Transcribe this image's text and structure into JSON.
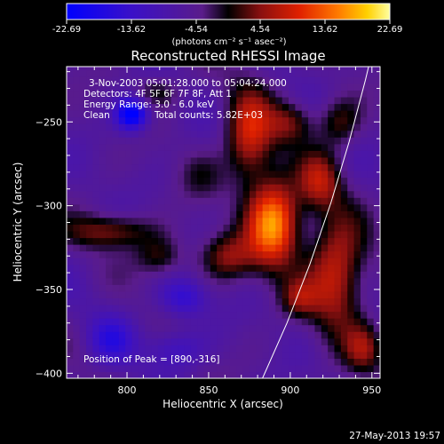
{
  "chart_data": {
    "type": "heatmap",
    "title": "Reconstructed RHESSI Image",
    "xlabel": "Heliocentric X (arcsec)",
    "ylabel": "Heliocentric Y (arcsec)",
    "xlim": [
      763,
      955
    ],
    "ylim": [
      -403,
      -217
    ],
    "x_ticks": [
      800,
      850,
      900,
      950
    ],
    "y_ticks": [
      -250,
      -300,
      -350,
      -400
    ],
    "colorbar": {
      "ticks": [
        "-22.69",
        "-13.62",
        "-4.54",
        "4.54",
        "13.62",
        "22.69"
      ],
      "range": [
        -22.69,
        22.69
      ],
      "unit_label": "(photons cm⁻² s⁻¹ asec⁻²)"
    },
    "annotations": [
      "3-Nov-2003 05:01:28.000 to 05:04:24.000",
      "Detectors: 4F 5F 6F 7F 8F, Att 1",
      "Energy Range: 3.0 - 6.0 keV",
      "Clean",
      "Total counts: 5.82E+03"
    ],
    "peak_label": "Position of Peak = [890,-316]",
    "peak": [
      890,
      -316
    ],
    "sources": [
      {
        "x": 890,
        "y": -310,
        "amp": 22.69,
        "sx": 11,
        "sy": 18
      },
      {
        "x": 875,
        "y": -258,
        "amp": 14.5,
        "sx": 10,
        "sy": 20
      },
      {
        "x": 862,
        "y": -330,
        "amp": 10.0,
        "sx": 12,
        "sy": 10
      },
      {
        "x": 928,
        "y": -340,
        "amp": 15.0,
        "sx": 12,
        "sy": 24
      },
      {
        "x": 918,
        "y": -285,
        "amp": 11.0,
        "sx": 9,
        "sy": 12
      },
      {
        "x": 900,
        "y": -250,
        "amp": 9.0,
        "sx": 10,
        "sy": 9
      },
      {
        "x": 790,
        "y": -315,
        "amp": 10.0,
        "sx": 18,
        "sy": 7
      },
      {
        "x": 820,
        "y": -330,
        "amp": 7.5,
        "sx": 10,
        "sy": 8
      },
      {
        "x": 945,
        "y": -385,
        "amp": 9.0,
        "sx": 8,
        "sy": 10
      },
      {
        "x": 930,
        "y": -250,
        "amp": 8.0,
        "sx": 9,
        "sy": 10
      },
      {
        "x": 818,
        "y": -232,
        "amp": 6.0,
        "sx": 10,
        "sy": 6
      },
      {
        "x": 905,
        "y": -355,
        "amp": 8.0,
        "sx": 8,
        "sy": 8
      },
      {
        "x": 845,
        "y": -282,
        "amp": 3.5,
        "sx": 10,
        "sy": 10
      },
      {
        "x": 803,
        "y": -245,
        "amp": -19.0,
        "sx": 7,
        "sy": 7
      },
      {
        "x": 835,
        "y": -355,
        "amp": -9.0,
        "sx": 10,
        "sy": 8
      },
      {
        "x": 790,
        "y": -380,
        "amp": -8.0,
        "sx": 10,
        "sy": 10
      },
      {
        "x": 830,
        "y": -385,
        "amp": -7.0,
        "sx": 12,
        "sy": 8
      }
    ],
    "limb_curve": [
      [
        883,
        -403
      ],
      [
        898,
        -370
      ],
      [
        912,
        -335
      ],
      [
        925,
        -298
      ],
      [
        936,
        -262
      ],
      [
        946,
        -225
      ],
      [
        948,
        -217
      ]
    ]
  },
  "footer": {
    "date": "27-May-2013 19:57"
  }
}
